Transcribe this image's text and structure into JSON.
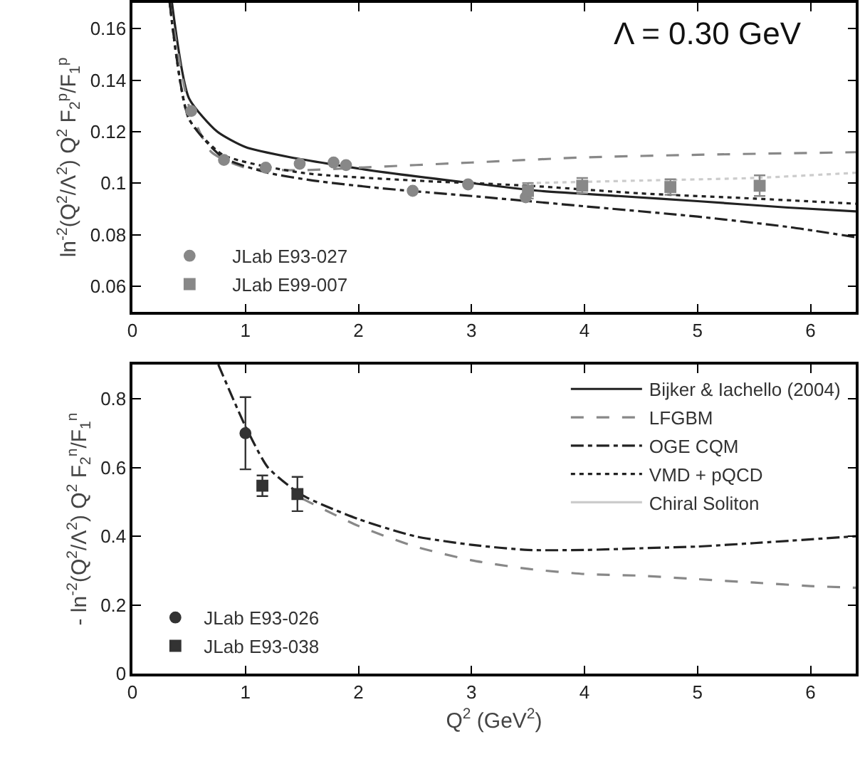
{
  "chart_data": [
    {
      "type": "line",
      "ylabel": "ln$^{-2}$(Q$^{2}$/Λ$^{2}$) Q$^{2}$ F$_{2}$$^{p}$/F$_{1}$$^{p}$",
      "annotations": [
        "Λ = 0.30 GeV"
      ],
      "xlim": [
        0,
        6.4
      ],
      "xticks": [
        0,
        1,
        2,
        3,
        4,
        5,
        6
      ],
      "ylim": [
        0.05,
        0.17
      ],
      "yticks": [
        0.06,
        0.08,
        0.1,
        0.12,
        0.14,
        0.16
      ],
      "grid": false,
      "legend": "bottom left",
      "series": [
        {
          "color": "#222222",
          "line_style": "solid",
          "x": [
            0.35,
            0.5,
            0.75,
            1.0,
            1.4,
            2.1,
            3.0,
            3.6,
            4.3,
            5.0,
            5.8,
            6.4
          ],
          "values": [
            0.17,
            0.133,
            0.12,
            0.114,
            0.11,
            0.105,
            0.1,
            0.097,
            0.095,
            0.093,
            0.0905,
            0.089
          ]
        },
        {
          "color": "#888888",
          "line_style": "dashed",
          "x": [
            0.33,
            0.5,
            0.7,
            1.0,
            1.5,
            2.0,
            3.0,
            4.0,
            5.0,
            6.4
          ],
          "values": [
            0.17,
            0.13,
            0.112,
            0.106,
            0.105,
            0.106,
            0.108,
            0.11,
            0.111,
            0.112
          ]
        },
        {
          "color": "#222222",
          "line_style": "dashdot",
          "x": [
            0.33,
            0.5,
            0.8,
            1.2,
            1.6,
            2.2,
            3.0,
            4.0,
            5.0,
            5.8,
            6.4
          ],
          "values": [
            0.17,
            0.125,
            0.11,
            0.104,
            0.101,
            0.098,
            0.095,
            0.091,
            0.087,
            0.083,
            0.079
          ]
        },
        {
          "color": "#222222",
          "line_style": "dotted",
          "x": [
            0.33,
            0.5,
            0.8,
            1.5,
            2.5,
            3.5,
            4.5,
            5.5,
            6.4
          ],
          "values": [
            0.17,
            0.125,
            0.111,
            0.104,
            0.101,
            0.099,
            0.096,
            0.094,
            0.092
          ]
        },
        {
          "color": "#cccccc",
          "line_style": "dotted",
          "x": [
            3.5,
            4.5,
            5.5,
            6.4
          ],
          "values": [
            0.1,
            0.101,
            0.102,
            0.104
          ]
        },
        {
          "type": "scatter",
          "name": "JLab E93-027",
          "color": "#888888",
          "marker": "circle",
          "x": [
            0.52,
            0.81,
            1.18,
            1.48,
            1.78,
            1.89,
            2.48,
            2.97,
            3.48
          ],
          "values": [
            0.128,
            0.109,
            0.106,
            0.1075,
            0.108,
            0.107,
            0.097,
            0.0995,
            0.0945
          ]
        },
        {
          "type": "scatter",
          "name": "JLab E99-007",
          "color": "#888888",
          "marker": "square",
          "x": [
            3.5,
            3.98,
            4.76,
            5.55
          ],
          "values": [
            0.097,
            0.099,
            0.0985,
            0.099
          ],
          "errors": [
            0.003,
            0.003,
            0.003,
            0.004
          ]
        }
      ]
    },
    {
      "type": "line",
      "ylabel": "- ln$^{-2}$(Q$^{2}$/Λ$^{2}$) Q$^{2}$ F$_{2}$$^{n}$/F$_{1}$$^{n}$",
      "xlabel": "Q$^{2}$ (GeV$^{2}$)",
      "xlim": [
        0,
        6.4
      ],
      "xticks": [
        0,
        1,
        2,
        3,
        4,
        5,
        6
      ],
      "ylim": [
        0,
        0.9
      ],
      "yticks": [
        0,
        0.2,
        0.4,
        0.6,
        0.8
      ],
      "grid": false,
      "legend": "top right",
      "series": [
        {
          "name": "Bijker & Iachello (2004)",
          "color": "#222222",
          "line_style": "solid"
        },
        {
          "name": "LFGBM",
          "color": "#888888",
          "line_style": "dashed",
          "x": [
            1.5,
            2.0,
            2.5,
            3.0,
            3.5,
            4.0,
            4.5,
            5.0,
            5.5,
            6.0,
            6.4
          ],
          "values": [
            0.51,
            0.43,
            0.37,
            0.33,
            0.305,
            0.29,
            0.285,
            0.275,
            0.265,
            0.255,
            0.25
          ]
        },
        {
          "name": "OGE CQM",
          "color": "#222222",
          "line_style": "dashdot",
          "x": [
            0.76,
            1.0,
            1.2,
            1.5,
            2.0,
            2.5,
            3.0,
            3.5,
            4.0,
            4.5,
            5.0,
            5.5,
            6.4
          ],
          "values": [
            0.9,
            0.72,
            0.6,
            0.52,
            0.45,
            0.4,
            0.375,
            0.36,
            0.36,
            0.365,
            0.37,
            0.38,
            0.4
          ]
        },
        {
          "name": "VMD + pQCD",
          "color": "#222222",
          "line_style": "dotted"
        },
        {
          "name": "Chiral Soliton",
          "color": "#cccccc",
          "line_style": "solid"
        },
        {
          "type": "scatter",
          "name": "JLab E93-026",
          "color": "#333333",
          "marker": "circle",
          "x": [
            1.0
          ],
          "values": [
            0.7
          ],
          "errors": [
            0.105
          ]
        },
        {
          "type": "scatter",
          "name": "JLab E93-038",
          "color": "#333333",
          "marker": "square",
          "x": [
            1.15,
            1.46
          ],
          "values": [
            0.547,
            0.523
          ],
          "errors": [
            0.03,
            0.05
          ]
        }
      ]
    }
  ]
}
